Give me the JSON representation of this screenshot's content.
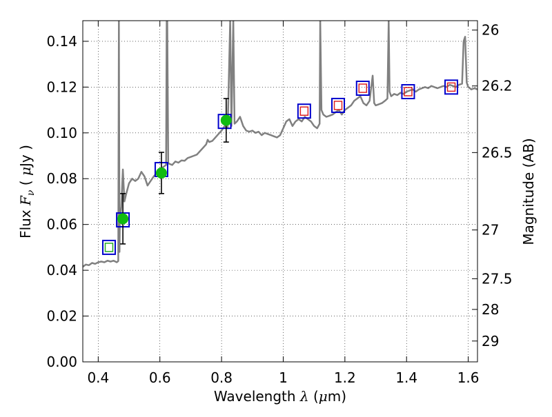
{
  "chart_data": {
    "type": "scatter",
    "xlabel": "Wavelength  λ (μm)",
    "ylabel": "Flux  F_ν  ( μJy )",
    "ylabel_parts": {
      "pre": "Flux ",
      "var": "F",
      "sub": "ν",
      "mid": "  ( ",
      "mu": "μ",
      "post": "Jy )"
    },
    "xlabel_parts": {
      "pre": "Wavelength  ",
      "var": "λ",
      "mid": " (",
      "mu": "μ",
      "post": "m)"
    },
    "ylabel_right": "Magnitude (AB)",
    "xlim": [
      0.35,
      1.63
    ],
    "ylim": [
      0.0,
      0.149
    ],
    "grid": true,
    "x_ticks": [
      0.4,
      0.6,
      0.8,
      1.0,
      1.2,
      1.4,
      1.6
    ],
    "x_tick_labels": [
      "0.4",
      "0.6",
      "0.8",
      "1",
      "1.2",
      "1.4",
      "1.6"
    ],
    "y_ticks": [
      0.0,
      0.02,
      0.04,
      0.06,
      0.08,
      0.1,
      0.12,
      0.14
    ],
    "y_tick_labels": [
      "0.00",
      "0.02",
      "0.04",
      "0.06",
      "0.08",
      "0.10",
      "0.12",
      "0.14"
    ],
    "right_ticks": [
      {
        "label": "26",
        "flux": 0.1449
      },
      {
        "label": "26.2",
        "flux": 0.1205
      },
      {
        "label": "26.5",
        "flux": 0.0914
      },
      {
        "label": "27",
        "flux": 0.0576
      },
      {
        "label": "27.5",
        "flux": 0.0363
      },
      {
        "label": "28",
        "flux": 0.0229
      },
      {
        "label": "29",
        "flux": 0.0091
      }
    ],
    "series": [
      {
        "name": "model spectrum",
        "kind": "line",
        "color": "#808080",
        "points": [
          [
            0.35,
            0.0415
          ],
          [
            0.36,
            0.0425
          ],
          [
            0.37,
            0.0422
          ],
          [
            0.38,
            0.0432
          ],
          [
            0.39,
            0.0428
          ],
          [
            0.4,
            0.0435
          ],
          [
            0.41,
            0.0438
          ],
          [
            0.42,
            0.0435
          ],
          [
            0.43,
            0.0442
          ],
          [
            0.44,
            0.0438
          ],
          [
            0.45,
            0.0442
          ],
          [
            0.46,
            0.0435
          ],
          [
            0.465,
            0.044
          ],
          [
            0.467,
            0.149
          ],
          [
            0.469,
            0.048
          ],
          [
            0.47,
            0.06
          ],
          [
            0.475,
            0.068
          ],
          [
            0.478,
            0.078
          ],
          [
            0.48,
            0.084
          ],
          [
            0.485,
            0.07
          ],
          [
            0.49,
            0.073
          ],
          [
            0.5,
            0.078
          ],
          [
            0.51,
            0.08
          ],
          [
            0.52,
            0.079
          ],
          [
            0.53,
            0.08
          ],
          [
            0.54,
            0.083
          ],
          [
            0.55,
            0.081
          ],
          [
            0.56,
            0.077
          ],
          [
            0.57,
            0.079
          ],
          [
            0.58,
            0.081
          ],
          [
            0.59,
            0.0825
          ],
          [
            0.6,
            0.084
          ],
          [
            0.61,
            0.085
          ],
          [
            0.62,
            0.086
          ],
          [
            0.622,
            0.149
          ],
          [
            0.624,
            0.149
          ],
          [
            0.627,
            0.087
          ],
          [
            0.63,
            0.0865
          ],
          [
            0.64,
            0.086
          ],
          [
            0.65,
            0.0875
          ],
          [
            0.66,
            0.087
          ],
          [
            0.67,
            0.088
          ],
          [
            0.68,
            0.0878
          ],
          [
            0.69,
            0.089
          ],
          [
            0.7,
            0.0895
          ],
          [
            0.71,
            0.09
          ],
          [
            0.72,
            0.0905
          ],
          [
            0.73,
            0.092
          ],
          [
            0.74,
            0.0935
          ],
          [
            0.75,
            0.095
          ],
          [
            0.755,
            0.097
          ],
          [
            0.76,
            0.096
          ],
          [
            0.77,
            0.0965
          ],
          [
            0.78,
            0.098
          ],
          [
            0.79,
            0.0995
          ],
          [
            0.8,
            0.101
          ],
          [
            0.81,
            0.103
          ],
          [
            0.82,
            0.102
          ],
          [
            0.828,
            0.149
          ],
          [
            0.832,
            0.103
          ],
          [
            0.838,
            0.149
          ],
          [
            0.842,
            0.104
          ],
          [
            0.85,
            0.105
          ],
          [
            0.86,
            0.107
          ],
          [
            0.87,
            0.103
          ],
          [
            0.88,
            0.101
          ],
          [
            0.89,
            0.1005
          ],
          [
            0.9,
            0.101
          ],
          [
            0.91,
            0.1
          ],
          [
            0.92,
            0.1005
          ],
          [
            0.93,
            0.099
          ],
          [
            0.94,
            0.1
          ],
          [
            0.95,
            0.0995
          ],
          [
            0.96,
            0.099
          ],
          [
            0.97,
            0.0985
          ],
          [
            0.98,
            0.098
          ],
          [
            0.99,
            0.099
          ],
          [
            1.0,
            0.102
          ],
          [
            1.01,
            0.105
          ],
          [
            1.02,
            0.106
          ],
          [
            1.03,
            0.103
          ],
          [
            1.04,
            0.105
          ],
          [
            1.05,
            0.106
          ],
          [
            1.06,
            0.105
          ],
          [
            1.07,
            0.107
          ],
          [
            1.08,
            0.106
          ],
          [
            1.09,
            0.105
          ],
          [
            1.1,
            0.103
          ],
          [
            1.11,
            0.102
          ],
          [
            1.118,
            0.104
          ],
          [
            1.12,
            0.149
          ],
          [
            1.124,
            0.11
          ],
          [
            1.13,
            0.108
          ],
          [
            1.14,
            0.107
          ],
          [
            1.15,
            0.1075
          ],
          [
            1.16,
            0.108
          ],
          [
            1.17,
            0.109
          ],
          [
            1.18,
            0.11
          ],
          [
            1.19,
            0.108
          ],
          [
            1.2,
            0.11
          ],
          [
            1.21,
            0.111
          ],
          [
            1.22,
            0.112
          ],
          [
            1.23,
            0.114
          ],
          [
            1.24,
            0.115
          ],
          [
            1.25,
            0.116
          ],
          [
            1.26,
            0.113
          ],
          [
            1.27,
            0.112
          ],
          [
            1.28,
            0.114
          ],
          [
            1.29,
            0.125
          ],
          [
            1.295,
            0.113
          ],
          [
            1.3,
            0.112
          ],
          [
            1.31,
            0.1125
          ],
          [
            1.32,
            0.113
          ],
          [
            1.33,
            0.114
          ],
          [
            1.338,
            0.115
          ],
          [
            1.342,
            0.149
          ],
          [
            1.345,
            0.118
          ],
          [
            1.35,
            0.116
          ],
          [
            1.36,
            0.117
          ],
          [
            1.37,
            0.1165
          ],
          [
            1.38,
            0.1175
          ],
          [
            1.39,
            0.117
          ],
          [
            1.4,
            0.118
          ],
          [
            1.41,
            0.1185
          ],
          [
            1.42,
            0.119
          ],
          [
            1.43,
            0.118
          ],
          [
            1.44,
            0.119
          ],
          [
            1.45,
            0.1195
          ],
          [
            1.46,
            0.12
          ],
          [
            1.47,
            0.1195
          ],
          [
            1.48,
            0.1205
          ],
          [
            1.49,
            0.12
          ],
          [
            1.5,
            0.1195
          ],
          [
            1.51,
            0.12
          ],
          [
            1.52,
            0.1205
          ],
          [
            1.53,
            0.12
          ],
          [
            1.54,
            0.121
          ],
          [
            1.55,
            0.1205
          ],
          [
            1.56,
            0.12
          ],
          [
            1.57,
            0.121
          ],
          [
            1.58,
            0.1215
          ],
          [
            1.585,
            0.14
          ],
          [
            1.59,
            0.142
          ],
          [
            1.595,
            0.122
          ],
          [
            1.6,
            0.12
          ],
          [
            1.61,
            0.119
          ],
          [
            1.62,
            0.1195
          ],
          [
            1.63,
            0.119
          ]
        ]
      },
      {
        "name": "blue squares",
        "kind": "square",
        "color": "#0000cc",
        "points": [
          [
            0.435,
            0.05
          ],
          [
            0.48,
            0.062
          ],
          [
            0.605,
            0.084
          ],
          [
            0.81,
            0.105
          ],
          [
            1.068,
            0.1095
          ],
          [
            1.178,
            0.112
          ],
          [
            1.258,
            0.1195
          ],
          [
            1.405,
            0.118
          ],
          [
            1.545,
            0.12
          ]
        ]
      },
      {
        "name": "green open squares",
        "kind": "inner-square",
        "color": "#22aa22",
        "points": [
          [
            0.435,
            0.05
          ]
        ]
      },
      {
        "name": "red open squares",
        "kind": "inner-square",
        "color": "#dd2222",
        "points": [
          [
            1.068,
            0.1095
          ],
          [
            1.178,
            0.112
          ],
          [
            1.258,
            0.1195
          ],
          [
            1.405,
            0.118
          ],
          [
            1.545,
            0.12
          ]
        ]
      },
      {
        "name": "green circles with error bars",
        "kind": "circle",
        "color": "#11bb11",
        "points": [
          [
            0.48,
            0.0625,
            0.011
          ],
          [
            0.605,
            0.0825,
            0.009
          ],
          [
            0.815,
            0.1055,
            0.0095
          ]
        ]
      }
    ]
  }
}
